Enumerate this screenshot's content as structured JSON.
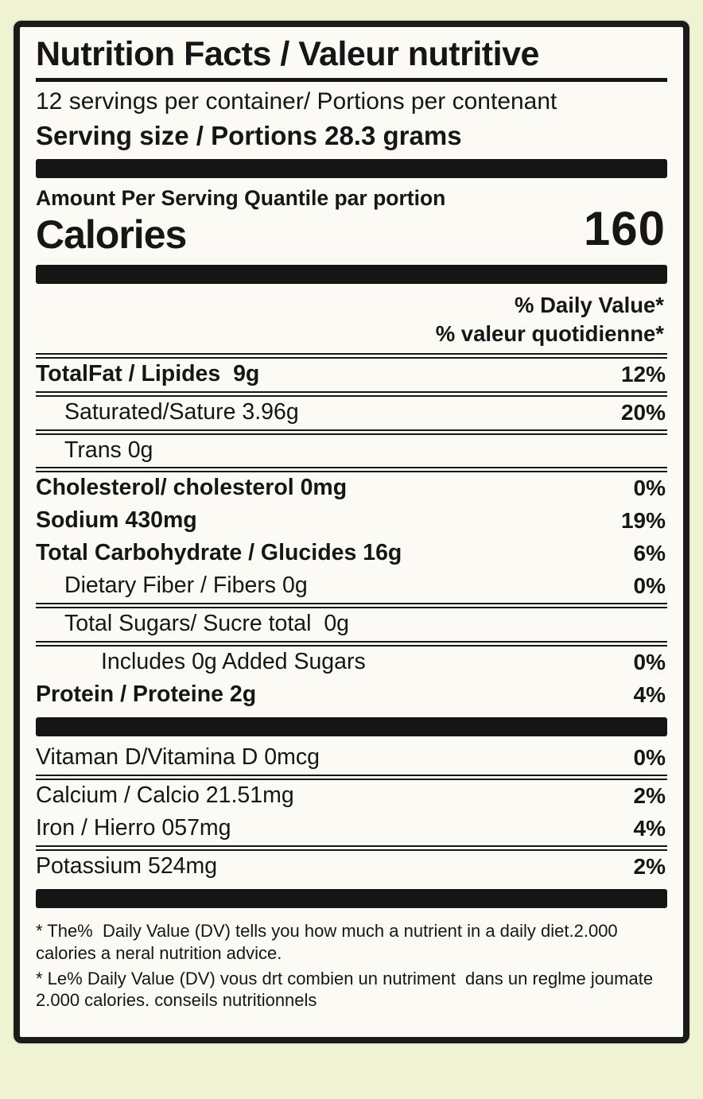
{
  "colors": {
    "page_bg": "#eff3d1",
    "paper": "#fbfaf5",
    "ink": "#161616"
  },
  "label": {
    "title": "Nutrition Facts / Valeur nutritive",
    "servings_per_container": "12 servings per container/ Portions per contenant",
    "serving_size": "Serving size / Portions 28.3 grams",
    "amount_per_serving": "Amount Per Serving Quantile par portion",
    "calories_label": "Calories",
    "calories_value": "160",
    "daily_value_en": "% Daily Value*",
    "daily_value_fr": "% valeur quotidienne*",
    "nutrients": [
      {
        "label": "TotalFat / Lipides  9g",
        "percent": "12%"
      },
      {
        "label": "Saturated/Sature 3.96g",
        "percent": "20%"
      },
      {
        "label": "Trans 0g",
        "percent": ""
      },
      {
        "label": "Cholesterol/ cholesterol 0mg",
        "percent": "0%"
      },
      {
        "label": "Sodium 430mg",
        "percent": "19%"
      },
      {
        "label": "Total Carbohydrate / Glucides 16g",
        "percent": "6%"
      },
      {
        "label": "Dietary Fiber / Fibers 0g",
        "percent": "0%"
      },
      {
        "label": "Total Sugars/ Sucre total  0g",
        "percent": ""
      },
      {
        "label": "Includes 0g Added Sugars",
        "percent": "0%"
      },
      {
        "label": "Protein / Proteine 2g",
        "percent": "4%"
      }
    ],
    "micronutrients": [
      {
        "label": "Vitaman D/Vitamina D 0mcg",
        "percent": "0%"
      },
      {
        "label": "Calcium / Calcio 21.51mg",
        "percent": "2%"
      },
      {
        "label": "Iron / Hierro 057mg",
        "percent": "4%"
      },
      {
        "label": "Potassium 524mg",
        "percent": "2%"
      }
    ],
    "footnote_en": "* The%  Daily Value (DV) tells you how much a nutrient in a daily diet.2.000 calories a neral nutrition advice.",
    "footnote_fr": "* Le% Daily Value (DV) vous drt combien un nutriment  dans un reglme joumate 2.000 calories. conseils nutritionnels"
  }
}
